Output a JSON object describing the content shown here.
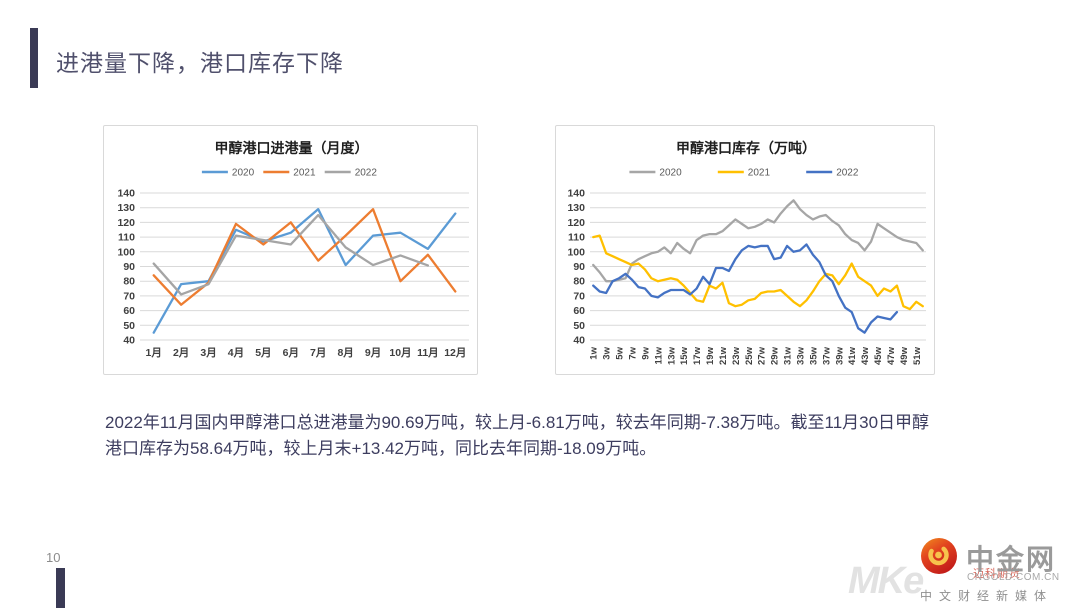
{
  "slide": {
    "title": "进港量下降，港口库存下降",
    "body": "2022年11月国内甲醇港口总进港量为90.69万吨，较上月-6.81万吨，较去年同期-7.38万吨。截至11月30日甲醇港口库存为58.64万吨，较上月末+13.42万吨，同比去年同期-18.09万吨。",
    "page_number": "10",
    "accent_color": "#3a3a55"
  },
  "footer_brand": {
    "watermark_letters": "MKe",
    "watermark_red_text": "迈科期货",
    "logo_icon": "red-gold-swirl-icon",
    "name": "中金网",
    "domain": "CNGOLD.COM.CN",
    "tagline": "中文财经新媒体"
  },
  "chart_data": [
    {
      "type": "line",
      "title": "甲醇港口进港量（月度）",
      "categories": [
        "1月",
        "2月",
        "3月",
        "4月",
        "5月",
        "6月",
        "7月",
        "8月",
        "9月",
        "10月",
        "11月",
        "12月"
      ],
      "series": [
        {
          "name": "2020",
          "color": "#5B9BD5",
          "values": [
            45,
            78,
            80,
            115,
            107,
            113,
            129,
            91,
            111,
            113,
            102,
            126
          ]
        },
        {
          "name": "2021",
          "color": "#ED7D31",
          "values": [
            84,
            64,
            79,
            119,
            105,
            120,
            94,
            111,
            129,
            80,
            98,
            73
          ]
        },
        {
          "name": "2022",
          "color": "#A5A5A5",
          "values": [
            92,
            71,
            78,
            111,
            108,
            105,
            125,
            103,
            91,
            97.5,
            90.7,
            null
          ]
        }
      ],
      "ylim": [
        40,
        140
      ],
      "ytick": 10,
      "grid": true,
      "legend_position": "top",
      "label_every": 1
    },
    {
      "type": "line",
      "title": "甲醇港口库存（万吨）",
      "categories": [
        "1w",
        "2w",
        "3w",
        "4w",
        "5w",
        "6w",
        "7w",
        "8w",
        "9w",
        "10w",
        "11w",
        "12w",
        "13w",
        "14w",
        "15w",
        "16w",
        "17w",
        "18w",
        "19w",
        "20w",
        "21w",
        "22w",
        "23w",
        "24w",
        "25w",
        "26w",
        "27w",
        "28w",
        "29w",
        "30w",
        "31w",
        "32w",
        "33w",
        "34w",
        "35w",
        "36w",
        "37w",
        "38w",
        "39w",
        "40w",
        "41w",
        "42w",
        "43w",
        "44w",
        "45w",
        "46w",
        "47w",
        "48w",
        "49w",
        "50w",
        "51w",
        "52w"
      ],
      "series": [
        {
          "name": "2020",
          "color": "#A6A6A6",
          "values": [
            91,
            86,
            80,
            80,
            81,
            82,
            92,
            95,
            97,
            99,
            100,
            103,
            99,
            106,
            102,
            99,
            108,
            111,
            112,
            112,
            114,
            118,
            122,
            119,
            116,
            117,
            119,
            122,
            120,
            126,
            131,
            135,
            129,
            125,
            122,
            124,
            125,
            121,
            118,
            112,
            108,
            106,
            101,
            107,
            119,
            116,
            113,
            110,
            108,
            107,
            106,
            101
          ]
        },
        {
          "name": "2021",
          "color": "#FFC000",
          "values": [
            110,
            111,
            99,
            97,
            95,
            93,
            91,
            92,
            88,
            82,
            80,
            81,
            82,
            81,
            77,
            72,
            67,
            66,
            77,
            75,
            79,
            65,
            63,
            64,
            67,
            68,
            72,
            73,
            73,
            74,
            70,
            66,
            63,
            67,
            73,
            80,
            85,
            84,
            78,
            84,
            92,
            83,
            80,
            77,
            70,
            75,
            73,
            77,
            63,
            61,
            66,
            63
          ]
        },
        {
          "name": "2022",
          "color": "#4472C4",
          "values": [
            77,
            73,
            72,
            80,
            82,
            85,
            81,
            76,
            75,
            70,
            69,
            72,
            74,
            74,
            74,
            71,
            75,
            83,
            78,
            89,
            89,
            87,
            95,
            101,
            104,
            103,
            104,
            104,
            95,
            96,
            104,
            100,
            101,
            105,
            98,
            93,
            84,
            80,
            70,
            62,
            59,
            48,
            45,
            52,
            56,
            55,
            54,
            59
          ]
        }
      ],
      "ylim": [
        40,
        140
      ],
      "ytick": 10,
      "grid": true,
      "legend_position": "top",
      "label_every": 2
    }
  ]
}
